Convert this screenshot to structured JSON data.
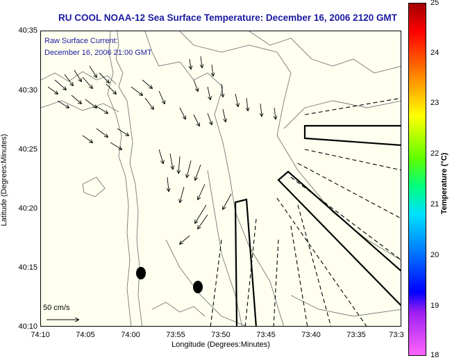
{
  "title": "RU COOL  NOAA-12  Sea Surface Temperature:  December 16, 2006 2120 GMT",
  "legend": {
    "line1": "Raw Surface Current:",
    "line2": "December 16, 2006 21:00 GMT"
  },
  "scale_label": "50 cm/s",
  "axes": {
    "xlabel": "Longitude (Degrees:Minutes)",
    "ylabel": "Latitude (Degrees:Minutes)",
    "xticks": [
      "74:10",
      "74:05",
      "74:00",
      "73:55",
      "73:50",
      "73:45",
      "73:40",
      "73:35",
      "73:3"
    ],
    "yticks": [
      "40:35",
      "40:30",
      "40:25",
      "40:20",
      "40:15",
      "40:10"
    ]
  },
  "colorbar": {
    "label": "Temperature (°C)",
    "ticks": [
      "25",
      "24",
      "23",
      "22",
      "21",
      "20",
      "19",
      "18"
    ],
    "colors": [
      "#ff66ff",
      "#0000ff",
      "#00e0ff",
      "#ffff00",
      "#ff0000",
      "#a00000"
    ]
  }
}
